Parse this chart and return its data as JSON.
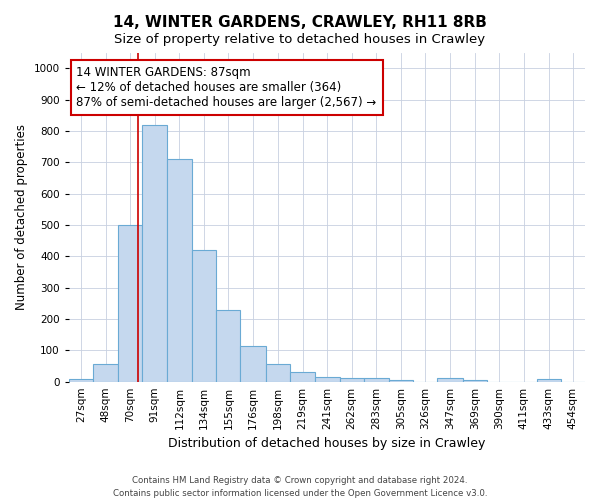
{
  "title": "14, WINTER GARDENS, CRAWLEY, RH11 8RB",
  "subtitle": "Size of property relative to detached houses in Crawley",
  "xlabel": "Distribution of detached houses by size in Crawley",
  "ylabel": "Number of detached properties",
  "footnote1": "Contains HM Land Registry data © Crown copyright and database right 2024.",
  "footnote2": "Contains public sector information licensed under the Open Government Licence v3.0.",
  "categories": [
    "27sqm",
    "48sqm",
    "70sqm",
    "91sqm",
    "112sqm",
    "134sqm",
    "155sqm",
    "176sqm",
    "198sqm",
    "219sqm",
    "241sqm",
    "262sqm",
    "283sqm",
    "305sqm",
    "326sqm",
    "347sqm",
    "369sqm",
    "390sqm",
    "411sqm",
    "433sqm",
    "454sqm"
  ],
  "bar_left_edges": [
    27,
    48,
    70,
    91,
    112,
    134,
    155,
    176,
    198,
    219,
    241,
    262,
    283,
    305,
    326,
    347,
    369,
    390,
    411,
    433,
    454
  ],
  "bar_widths": [
    21,
    22,
    21,
    21,
    22,
    21,
    21,
    22,
    21,
    22,
    21,
    21,
    22,
    21,
    21,
    22,
    21,
    21,
    22,
    21,
    21
  ],
  "values": [
    8,
    57,
    500,
    820,
    710,
    420,
    230,
    115,
    55,
    30,
    15,
    12,
    13,
    5,
    0,
    12,
    5,
    0,
    0,
    10,
    0
  ],
  "bar_color": "#c5d8ee",
  "bar_edge_color": "#6aaad4",
  "vline_x": 87,
  "vline_color": "#cc0000",
  "annotation_text": "14 WINTER GARDENS: 87sqm\n← 12% of detached houses are smaller (364)\n87% of semi-detached houses are larger (2,567) →",
  "annotation_box_color": "#cc0000",
  "ylim": [
    0,
    1050
  ],
  "yticks": [
    0,
    100,
    200,
    300,
    400,
    500,
    600,
    700,
    800,
    900,
    1000
  ],
  "grid_color": "#c8d0e0",
  "background_color": "#ffffff",
  "title_fontsize": 11,
  "subtitle_fontsize": 9.5,
  "ylabel_fontsize": 8.5,
  "xlabel_fontsize": 9,
  "tick_fontsize": 7.5,
  "annotation_fontsize": 8.5
}
